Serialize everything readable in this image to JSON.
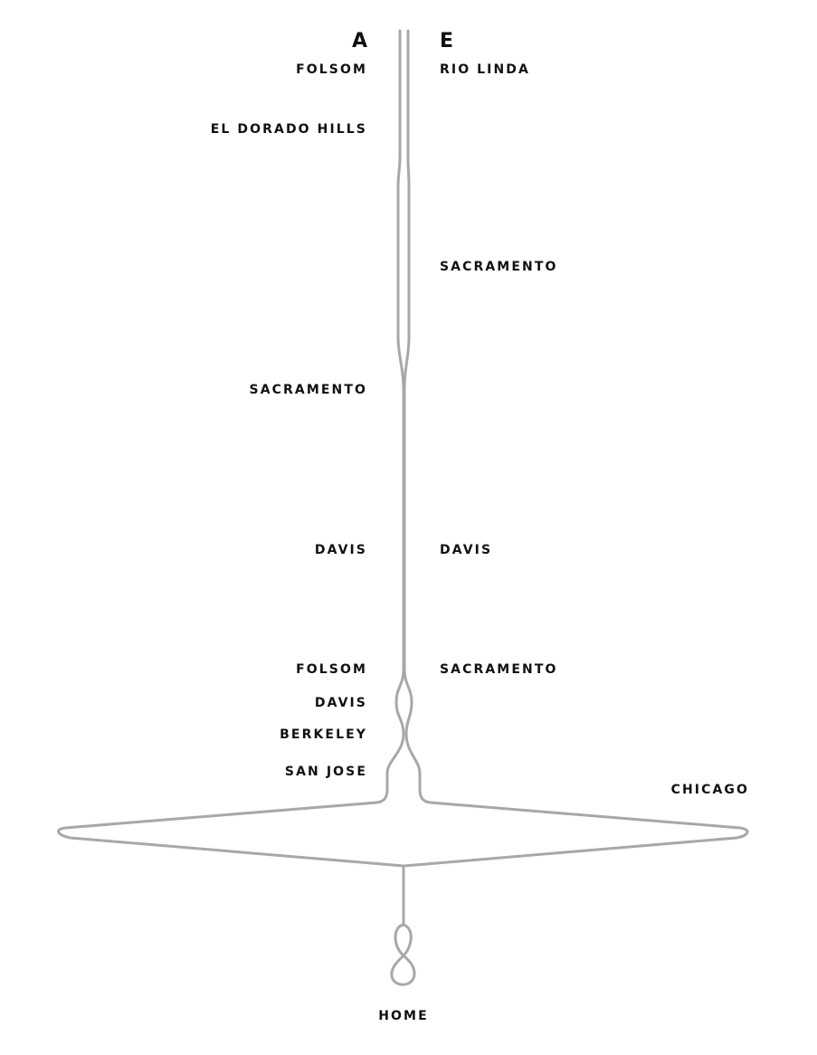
{
  "people": {
    "left": "A",
    "right": "E"
  },
  "left_places": [
    "FOLSOM",
    "EL DORADO HILLS",
    "SACRAMENTO",
    "DAVIS",
    "FOLSOM",
    "DAVIS",
    "BERKELEY",
    "SAN JOSE"
  ],
  "right_places": [
    "RIO LINDA",
    "SACRAMENTO",
    "DAVIS",
    "SACRAMENTO",
    "CHICAGO"
  ],
  "end_place": "HOME",
  "colors": {
    "thread": "#a8a8aa",
    "text": "#111111",
    "background": "#ffffff"
  }
}
